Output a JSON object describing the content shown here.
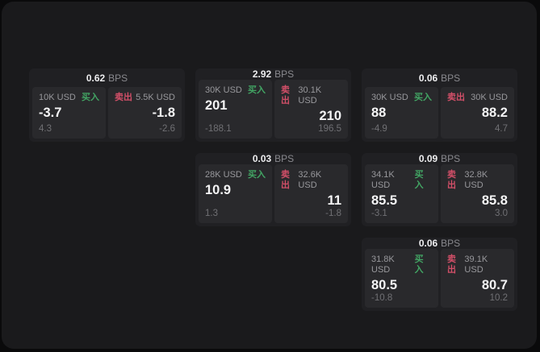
{
  "labels": {
    "bps_unit": "BPS",
    "buy": "买入",
    "sell": "卖出"
  },
  "colors": {
    "buy_green": "#42a564",
    "sell_red": "#d24f68",
    "panel_bg": "#29292c",
    "card_bg": "#202023",
    "stage_bg": "#1a1a1c"
  },
  "cards": [
    {
      "bps": "0.62",
      "buy": {
        "amount": "10K USD",
        "value": "-3.7",
        "sub": "4.3"
      },
      "sell": {
        "amount": "5.5K USD",
        "value": "-1.8",
        "sub": "-2.6"
      }
    },
    {
      "bps": "2.92",
      "buy": {
        "amount": "30K USD",
        "value": "201",
        "sub": "-188.1"
      },
      "sell": {
        "amount": "30.1K USD",
        "value": "210",
        "sub": "196.5"
      }
    },
    {
      "bps": "0.06",
      "buy": {
        "amount": "30K USD",
        "value": "88",
        "sub": "-4.9"
      },
      "sell": {
        "amount": "30K USD",
        "value": "88.2",
        "sub": "4.7"
      }
    },
    {
      "bps": "0.03",
      "buy": {
        "amount": "28K USD",
        "value": "10.9",
        "sub": "1.3"
      },
      "sell": {
        "amount": "32.6K USD",
        "value": "11",
        "sub": "-1.8"
      }
    },
    {
      "bps": "0.09",
      "buy": {
        "amount": "34.1K USD",
        "value": "85.5",
        "sub": "-3.1"
      },
      "sell": {
        "amount": "32.8K USD",
        "value": "85.8",
        "sub": "3.0"
      }
    },
    {
      "bps": "0.06",
      "buy": {
        "amount": "31.8K USD",
        "value": "80.5",
        "sub": "-10.8"
      },
      "sell": {
        "amount": "39.1K USD",
        "value": "80.7",
        "sub": "10.2"
      }
    }
  ]
}
